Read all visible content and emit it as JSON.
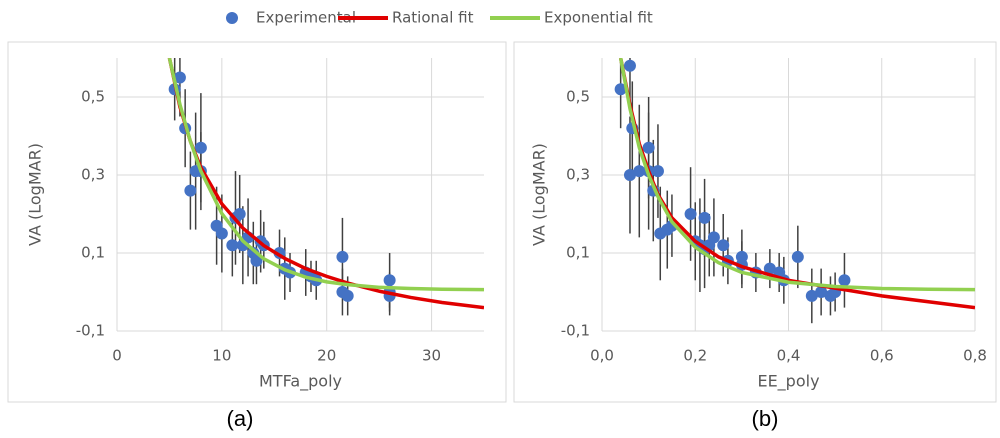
{
  "legend": [
    {
      "name": "Experimental",
      "color": "#4472c4"
    },
    {
      "name": "Rational fit",
      "color": "#e00000"
    },
    {
      "name": "Exponential fit",
      "color": "#92d050"
    }
  ],
  "chart_data": [
    {
      "type": "scatter",
      "label": "(a)",
      "x_label": "MTFa_poly",
      "y_label": "VA (LogMAR)",
      "xlim": [
        0,
        35
      ],
      "xticks": [
        0,
        10,
        20,
        30
      ],
      "ylim": [
        -0.1,
        0.6
      ],
      "yticks": [
        {
          "value": -0.1,
          "label": "-0,1"
        },
        {
          "value": 0.1,
          "label": "0,1"
        },
        {
          "value": 0.3,
          "label": "0,3"
        },
        {
          "value": 0.5,
          "label": "0,5"
        }
      ],
      "grid": true,
      "series": [
        {
          "type": "scatter",
          "x": [
            5.5,
            6,
            6.5,
            7,
            7.5,
            8,
            8,
            9.5,
            10,
            11,
            11.3,
            11.7,
            12,
            12.5,
            13,
            13.3,
            13.7,
            14,
            15.5,
            16,
            16.5,
            18,
            18.5,
            19,
            21.5,
            21.5,
            22,
            26,
            26,
            26
          ],
          "values": [
            0.52,
            0.55,
            0.42,
            0.26,
            0.31,
            0.37,
            0.31,
            0.17,
            0.15,
            0.12,
            0.19,
            0.2,
            0.12,
            0.14,
            0.1,
            0.08,
            0.13,
            0.12,
            0.1,
            0.06,
            0.05,
            0.05,
            0.04,
            0.03,
            0.09,
            0.0,
            -0.01,
            0.03,
            -0.01,
            0.0
          ],
          "errors": [
            0.08,
            0.1,
            0.1,
            0.1,
            0.15,
            0.14,
            0.1,
            0.1,
            0.1,
            0.08,
            0.12,
            0.1,
            0.1,
            0.1,
            0.08,
            0.06,
            0.08,
            0.06,
            0.06,
            0.08,
            0.05,
            0.06,
            0.04,
            0.05,
            0.1,
            0.06,
            0.05,
            0.07,
            0.05,
            0.05
          ]
        },
        {
          "type": "line",
          "x": [
            5,
            6,
            7,
            8,
            10,
            12,
            14,
            16,
            18,
            20,
            22,
            25,
            28,
            31,
            35
          ],
          "values": [
            0.6,
            0.475,
            0.386,
            0.319,
            0.226,
            0.164,
            0.119,
            0.086,
            0.06,
            0.04,
            0.023,
            0.002,
            -0.014,
            -0.027,
            -0.04
          ]
        },
        {
          "type": "line",
          "x": [
            5,
            6,
            7,
            8,
            10,
            12,
            14,
            16,
            18,
            20,
            22,
            25,
            28,
            31,
            35
          ],
          "values": [
            0.6,
            0.481,
            0.386,
            0.31,
            0.201,
            0.131,
            0.085,
            0.057,
            0.038,
            0.026,
            0.019,
            0.012,
            0.009,
            0.007,
            0.006
          ]
        }
      ]
    },
    {
      "type": "scatter",
      "label": "(b)",
      "x_label": "EE_poly",
      "y_label": "VA (LogMAR)",
      "xlim": [
        0,
        0.8
      ],
      "xticks": [
        {
          "value": 0,
          "label": "0,0"
        },
        {
          "value": 0.2,
          "label": "0,2"
        },
        {
          "value": 0.4,
          "label": "0,4"
        },
        {
          "value": 0.6,
          "label": "0,6"
        },
        {
          "value": 0.8,
          "label": "0,8"
        }
      ],
      "ylim": [
        -0.1,
        0.6
      ],
      "yticks": [
        {
          "value": -0.1,
          "label": "-0,1"
        },
        {
          "value": 0.1,
          "label": "0,1"
        },
        {
          "value": 0.3,
          "label": "0,3"
        },
        {
          "value": 0.5,
          "label": "0,5"
        }
      ],
      "grid": true,
      "series": [
        {
          "type": "scatter",
          "x": [
            0.04,
            0.06,
            0.06,
            0.065,
            0.08,
            0.1,
            0.1,
            0.11,
            0.12,
            0.125,
            0.14,
            0.15,
            0.19,
            0.2,
            0.21,
            0.22,
            0.22,
            0.23,
            0.24,
            0.26,
            0.27,
            0.3,
            0.3,
            0.33,
            0.36,
            0.38,
            0.39,
            0.42,
            0.45,
            0.47,
            0.49,
            0.5,
            0.52
          ],
          "values": [
            0.52,
            0.58,
            0.3,
            0.42,
            0.31,
            0.37,
            0.31,
            0.26,
            0.31,
            0.15,
            0.16,
            0.17,
            0.2,
            0.13,
            0.12,
            0.19,
            0.11,
            0.12,
            0.14,
            0.12,
            0.08,
            0.09,
            0.07,
            0.05,
            0.06,
            0.05,
            0.03,
            0.09,
            -0.01,
            0.0,
            -0.01,
            0.0,
            0.03
          ],
          "errors": [
            0.1,
            0.1,
            0.15,
            0.12,
            0.17,
            0.13,
            0.15,
            0.13,
            0.12,
            0.12,
            0.1,
            0.08,
            0.12,
            0.1,
            0.12,
            0.1,
            0.1,
            0.08,
            0.1,
            0.08,
            0.06,
            0.07,
            0.06,
            0.05,
            0.05,
            0.05,
            0.06,
            0.08,
            0.07,
            0.06,
            0.05,
            0.05,
            0.07
          ]
        },
        {
          "type": "line",
          "x": [
            0.04,
            0.06,
            0.08,
            0.1,
            0.12,
            0.15,
            0.2,
            0.25,
            0.3,
            0.4,
            0.5,
            0.6,
            0.7,
            0.8
          ],
          "values": [
            0.6,
            0.48,
            0.38,
            0.31,
            0.25,
            0.19,
            0.13,
            0.09,
            0.065,
            0.03,
            0.01,
            -0.01,
            -0.025,
            -0.04
          ]
        },
        {
          "type": "line",
          "x": [
            0.04,
            0.06,
            0.08,
            0.1,
            0.12,
            0.15,
            0.2,
            0.25,
            0.3,
            0.4,
            0.5,
            0.6,
            0.7,
            0.8
          ],
          "values": [
            0.6,
            0.47,
            0.37,
            0.3,
            0.245,
            0.18,
            0.115,
            0.075,
            0.05,
            0.025,
            0.014,
            0.009,
            0.007,
            0.006
          ]
        }
      ]
    }
  ]
}
